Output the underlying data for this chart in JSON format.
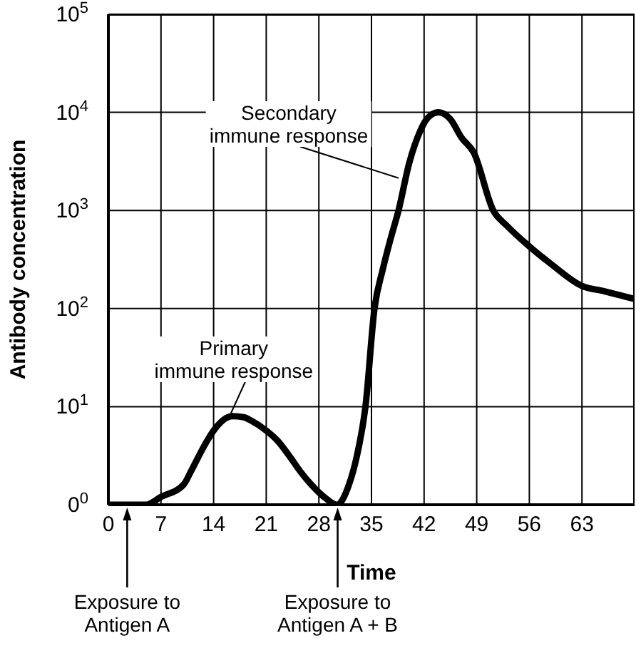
{
  "chart_data": {
    "type": "line",
    "xlabel": "Time",
    "ylabel": "Antibody concentration",
    "x": [
      0,
      3,
      5,
      7,
      10,
      11,
      12,
      13,
      14,
      16.5,
      18,
      19,
      21,
      22.5,
      24,
      25.5,
      27,
      29,
      30.4,
      32,
      33,
      34.2,
      35.4,
      36.5,
      37.5,
      38.6,
      40,
      41.5,
      42.5,
      43.9,
      45.5,
      47,
      48.6,
      51.2,
      53,
      56,
      59,
      63,
      66,
      70
    ],
    "series": [
      {
        "color": "#000000",
        "values": [
          1,
          1,
          1,
          1.2,
          1.6,
          2.2,
          3.1,
          4.3,
          5.7,
          8,
          7.8,
          7.2,
          5.7,
          4.5,
          3.2,
          2.2,
          1.6,
          1.15,
          1,
          1.6,
          3,
          10,
          100,
          250,
          500,
          1000,
          3000,
          6500,
          8800,
          10000,
          8500,
          5500,
          3900,
          1000,
          700,
          430,
          280,
          170,
          150,
          125
        ]
      }
    ],
    "xlim": [
      0,
      70
    ],
    "xticks": [
      0,
      7,
      14,
      21,
      28,
      35,
      42,
      49,
      56,
      63
    ],
    "ylim": [
      1,
      100000
    ],
    "yticks": [
      {
        "value": 1,
        "label": "0$^{0}$"
      },
      {
        "value": 10,
        "label": "10$^{1}$"
      },
      {
        "value": 100,
        "label": "10$^{2}$"
      },
      {
        "value": 1000,
        "label": "10$^{3}$"
      },
      {
        "value": 10000,
        "label": "10$^{4}$"
      },
      {
        "value": 100000,
        "label": "10$^{5}$"
      }
    ],
    "log": true,
    "grid": true,
    "marker": "none",
    "line_style": "solid",
    "legend": false,
    "annotations": [
      {
        "text": "Secondary\nimmune response",
        "x": 38.6,
        "y": 2000
      },
      {
        "text": "Primary\nimmune response",
        "x": 16.3,
        "y": 8
      },
      {
        "text": "Exposure to\nAntigen A",
        "x": 2.5,
        "y": 1
      },
      {
        "text": "Exposure to\nAntigen A + B",
        "x": 30.5,
        "y": 1
      }
    ]
  }
}
